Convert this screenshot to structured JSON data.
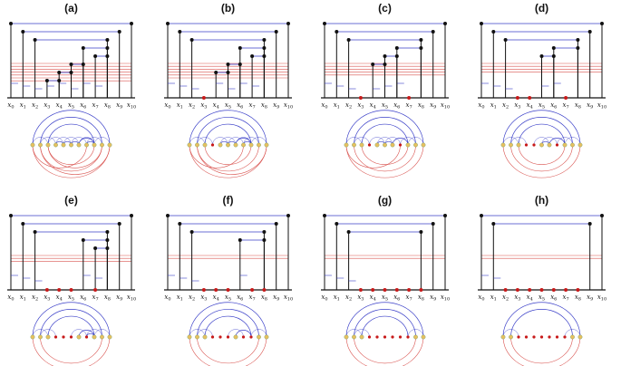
{
  "panels": [
    {
      "label": "(a)",
      "bars": [
        [
          0,
          10
        ],
        [
          1,
          9
        ],
        [
          2,
          8
        ],
        [
          6,
          8
        ],
        [
          7,
          8
        ],
        [
          5,
          6
        ],
        [
          4,
          5
        ],
        [
          3,
          4
        ]
      ],
      "red": []
    },
    {
      "label": "(b)",
      "bars": [
        [
          0,
          10
        ],
        [
          1,
          9
        ],
        [
          2,
          8
        ],
        [
          6,
          8
        ],
        [
          7,
          8
        ],
        [
          5,
          6
        ],
        [
          4,
          5
        ]
      ],
      "red": [
        3
      ]
    },
    {
      "label": "(c)",
      "bars": [
        [
          0,
          10
        ],
        [
          1,
          9
        ],
        [
          2,
          8
        ],
        [
          6,
          8
        ],
        [
          5,
          6
        ],
        [
          4,
          5
        ]
      ],
      "red": [
        3,
        7
      ]
    },
    {
      "label": "(d)",
      "bars": [
        [
          0,
          10
        ],
        [
          1,
          9
        ],
        [
          2,
          8
        ],
        [
          6,
          8
        ],
        [
          5,
          6
        ]
      ],
      "red": [
        3,
        4,
        7
      ]
    },
    {
      "label": "(e)",
      "bars": [
        [
          0,
          10
        ],
        [
          1,
          9
        ],
        [
          2,
          8
        ],
        [
          6,
          8
        ],
        [
          7,
          8
        ]
      ],
      "red": [
        3,
        4,
        5,
        7
      ]
    },
    {
      "label": "(f)",
      "bars": [
        [
          0,
          10
        ],
        [
          1,
          9
        ],
        [
          2,
          8
        ],
        [
          6,
          8
        ]
      ],
      "red": [
        3,
        4,
        5,
        7,
        8
      ]
    },
    {
      "label": "(g)",
      "bars": [
        [
          0,
          10
        ],
        [
          1,
          9
        ],
        [
          2,
          8
        ]
      ],
      "red": [
        3,
        4,
        5,
        6,
        7,
        8
      ]
    },
    {
      "label": "(h)",
      "bars": [
        [
          0,
          10
        ],
        [
          1,
          9
        ]
      ],
      "red": [
        2,
        3,
        4,
        5,
        6,
        7,
        8
      ]
    }
  ],
  "axis_labels": [
    "x0",
    "x1",
    "x2",
    "x3",
    "x4",
    "x5",
    "x6",
    "x7",
    "x8",
    "x9",
    "x10"
  ],
  "colors": {
    "blue": "#3a3fc8",
    "red": "#d9534f",
    "node": "#e8c060",
    "dot": "#c81a1a",
    "ink": "#111111"
  }
}
